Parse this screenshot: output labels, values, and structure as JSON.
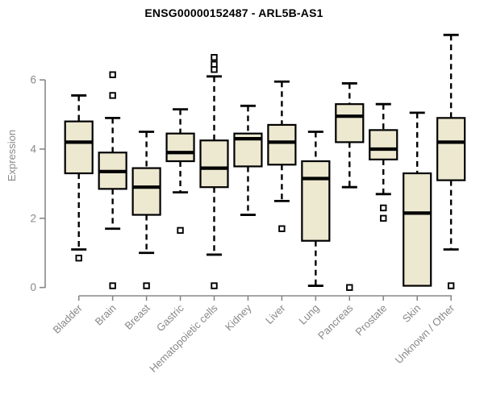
{
  "chart_data": {
    "type": "boxplot",
    "title": "ENSG00000152487 - ARL5B-AS1",
    "ylabel": "Expression",
    "xlabel": "",
    "ylim": [
      0,
      7.5
    ],
    "yticks": [
      0,
      2,
      4,
      6
    ],
    "grid": false,
    "legend": null,
    "categories": [
      "Bladder",
      "Brain",
      "Breast",
      "Gastric",
      "Hematopoietic cells",
      "Kidney",
      "Liver",
      "Lung",
      "Pancreas",
      "Prostate",
      "Skin",
      "Unknown / Other"
    ],
    "series": [
      {
        "name": "Bladder",
        "whisker_low": 1.1,
        "q1": 3.3,
        "median": 4.2,
        "q3": 4.8,
        "whisker_high": 5.55,
        "outliers": [
          0.85
        ]
      },
      {
        "name": "Brain",
        "whisker_low": 1.7,
        "q1": 2.85,
        "median": 3.35,
        "q3": 3.9,
        "whisker_high": 4.9,
        "outliers": [
          6.15,
          5.55,
          0.05
        ]
      },
      {
        "name": "Breast",
        "whisker_low": 1.0,
        "q1": 2.1,
        "median": 2.9,
        "q3": 3.45,
        "whisker_high": 4.5,
        "outliers": [
          0.05
        ]
      },
      {
        "name": "Gastric",
        "whisker_low": 2.75,
        "q1": 3.65,
        "median": 3.9,
        "q3": 4.45,
        "whisker_high": 5.15,
        "outliers": [
          1.65
        ]
      },
      {
        "name": "Hematopoietic cells",
        "whisker_low": 0.95,
        "q1": 2.9,
        "median": 3.45,
        "q3": 4.25,
        "whisker_high": 6.1,
        "outliers": [
          6.65,
          6.45,
          6.3,
          0.05
        ]
      },
      {
        "name": "Kidney",
        "whisker_low": 2.1,
        "q1": 3.5,
        "median": 4.3,
        "q3": 4.45,
        "whisker_high": 5.25,
        "outliers": []
      },
      {
        "name": "Liver",
        "whisker_low": 2.5,
        "q1": 3.55,
        "median": 4.2,
        "q3": 4.7,
        "whisker_high": 5.95,
        "outliers": [
          1.7
        ]
      },
      {
        "name": "Lung",
        "whisker_low": 0.05,
        "q1": 1.35,
        "median": 3.15,
        "q3": 3.65,
        "whisker_high": 4.5,
        "outliers": []
      },
      {
        "name": "Pancreas",
        "whisker_low": 2.9,
        "q1": 4.2,
        "median": 4.95,
        "q3": 5.3,
        "whisker_high": 5.9,
        "outliers": [
          0.0
        ]
      },
      {
        "name": "Prostate",
        "whisker_low": 2.7,
        "q1": 3.7,
        "median": 4.0,
        "q3": 4.55,
        "whisker_high": 5.3,
        "outliers": [
          2.3,
          2.0
        ]
      },
      {
        "name": "Skin",
        "whisker_low": 0.05,
        "q1": 0.05,
        "median": 2.15,
        "q3": 3.3,
        "whisker_high": 5.05,
        "outliers": []
      },
      {
        "name": "Unknown / Other",
        "whisker_low": 1.1,
        "q1": 3.1,
        "median": 4.2,
        "q3": 4.9,
        "whisker_high": 7.3,
        "outliers": [
          0.05
        ]
      }
    ],
    "colors": {
      "box_fill": "#EDE8D0",
      "box_stroke": "#000000",
      "median": "#000000",
      "whisker": "#000000",
      "outlier_stroke": "#000000",
      "axis": "#888888",
      "tick_text": "#888888",
      "title": "#000000",
      "background": "#FFFFFF"
    }
  }
}
